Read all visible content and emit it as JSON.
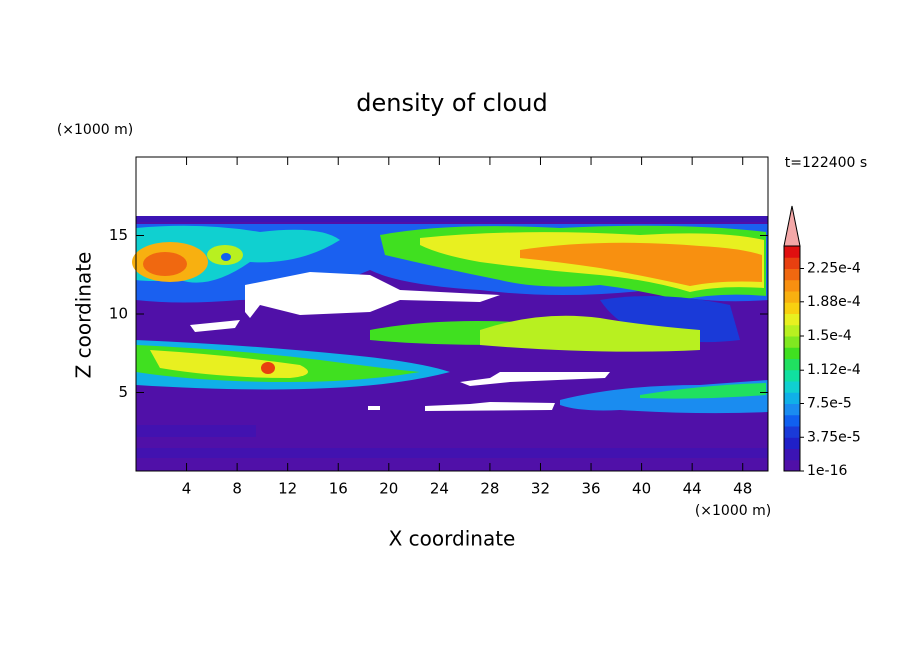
{
  "chart_data": {
    "type": "contour",
    "title": "density of cloud",
    "x_label": "X coordinate",
    "y_label": "Z coordinate",
    "x_unit": "(×1000 m)",
    "y_unit": "(×1000 m)",
    "annotation": "t=122400 s",
    "xlim": [
      0,
      50
    ],
    "ylim": [
      0,
      20
    ],
    "xticks": [
      4,
      8,
      12,
      16,
      20,
      24,
      28,
      32,
      36,
      40,
      44,
      48
    ],
    "yticks": [
      5,
      10,
      15
    ],
    "colorbar": {
      "lim": [
        1e-16,
        0.00025
      ],
      "colors": [
        "#5010a8",
        "#3c14b4",
        "#2020c8",
        "#1a3ad8",
        "#1060f0",
        "#1a8cf0",
        "#10b0e8",
        "#10d0d0",
        "#10e0a0",
        "#20e060",
        "#40e020",
        "#80e820",
        "#b8f020",
        "#e8f020",
        "#f8d010",
        "#f8b010",
        "#f89010",
        "#f06810",
        "#e84010",
        "#e01010"
      ],
      "extend_color": "#f4a8a8",
      "ticks": [
        {
          "value": 1e-16,
          "label": "1e-16"
        },
        {
          "value": 3.75e-05,
          "label": "3.75e-5"
        },
        {
          "value": 7.5e-05,
          "label": "7.5e-5"
        },
        {
          "value": 0.000112,
          "label": "1.12e-4"
        },
        {
          "value": 0.00015,
          "label": "1.5e-4"
        },
        {
          "value": 0.000188,
          "label": "1.88e-4"
        },
        {
          "value": 0.000225,
          "label": "2.25e-4"
        }
      ]
    }
  }
}
